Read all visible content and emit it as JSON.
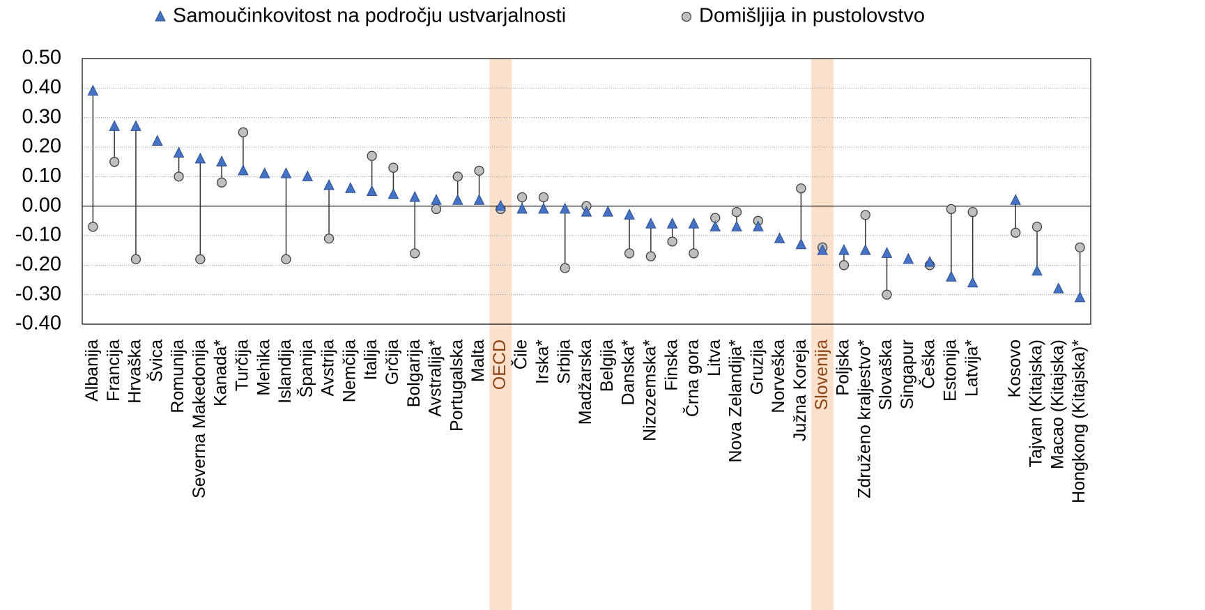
{
  "chart_data": {
    "type": "dot-range",
    "categories": [
      "Albanija",
      "Francija",
      "Hrvaška",
      "Švica",
      "Romunija",
      "Severna Makedonija",
      "Kanada*",
      "Turčija",
      "Mehika",
      "Islandija",
      "Španija",
      "Avstrija",
      "Nemčija",
      "Italija",
      "Grčija",
      "Bolgarija",
      "Avstralija*",
      "Portugalska",
      "Malta",
      "OECD",
      "Čile",
      "Irska*",
      "Srbija",
      "Madžarska",
      "Belgija",
      "Danska*",
      "Nizozemska*",
      "Finska",
      "Črna gora",
      "Litva",
      "Nova Zelandija*",
      "Gruzija",
      "Norveška",
      "Južna Koreja",
      "Slovenija",
      "Poljska",
      "Združeno kraljestvo*",
      "Slovaška",
      "Singapur",
      "Češka",
      "Estonija",
      "Latvija*",
      null,
      "Kosovo",
      "Tajvan (Kitajska)",
      "Macao (Kitajska)",
      "Hongkong (Kitajska)*"
    ],
    "series": [
      {
        "name": "Samoučinkovitost na področju ustvarjalnosti",
        "color": "#4472c4",
        "marker": "triangle",
        "values": [
          0.39,
          0.27,
          0.27,
          0.22,
          0.18,
          0.16,
          0.15,
          0.12,
          0.11,
          0.11,
          0.1,
          0.07,
          0.06,
          0.05,
          0.04,
          0.03,
          0.02,
          0.02,
          0.02,
          0.0,
          -0.01,
          -0.01,
          -0.01,
          -0.02,
          -0.02,
          -0.03,
          -0.06,
          -0.06,
          -0.06,
          -0.07,
          -0.07,
          -0.07,
          -0.11,
          -0.13,
          -0.15,
          -0.15,
          -0.15,
          -0.16,
          -0.18,
          -0.19,
          -0.24,
          -0.26,
          null,
          0.02,
          -0.22,
          -0.28,
          -0.31
        ]
      },
      {
        "name": "Domišljija in pustolovstvo",
        "color": "#bfbfbf",
        "marker": "circle",
        "values": [
          -0.07,
          0.15,
          -0.18,
          null,
          0.1,
          -0.18,
          0.08,
          0.25,
          null,
          -0.18,
          null,
          -0.11,
          null,
          0.17,
          0.13,
          -0.16,
          -0.01,
          0.1,
          0.12,
          -0.01,
          0.03,
          0.03,
          -0.21,
          0.0,
          null,
          -0.16,
          -0.17,
          -0.12,
          -0.16,
          -0.04,
          -0.02,
          -0.05,
          null,
          0.06,
          -0.14,
          -0.2,
          -0.03,
          -0.3,
          null,
          -0.2,
          -0.01,
          -0.02,
          null,
          -0.09,
          -0.07,
          null,
          -0.14
        ]
      }
    ],
    "highlight_categories": [
      19,
      34
    ],
    "highlight_color": "#fbe0cc",
    "highlight_label_color": "#8b4513",
    "ylim": [
      -0.4,
      0.5
    ],
    "yticks": [
      {
        "value": 0.5,
        "label": "0.50"
      },
      {
        "value": 0.4,
        "label": "0.40"
      },
      {
        "value": 0.3,
        "label": "0.30"
      },
      {
        "value": 0.2,
        "label": "0.20"
      },
      {
        "value": 0.1,
        "label": "0.10"
      },
      {
        "value": 0,
        "label": "0.00"
      },
      {
        "value": -0.1,
        "label": "-0.10"
      },
      {
        "value": -0.2,
        "label": "-0.20"
      },
      {
        "value": -0.3,
        "label": "-0.30"
      },
      {
        "value": -0.4,
        "label": "-0.40"
      }
    ],
    "grid": true,
    "legend": "top"
  }
}
